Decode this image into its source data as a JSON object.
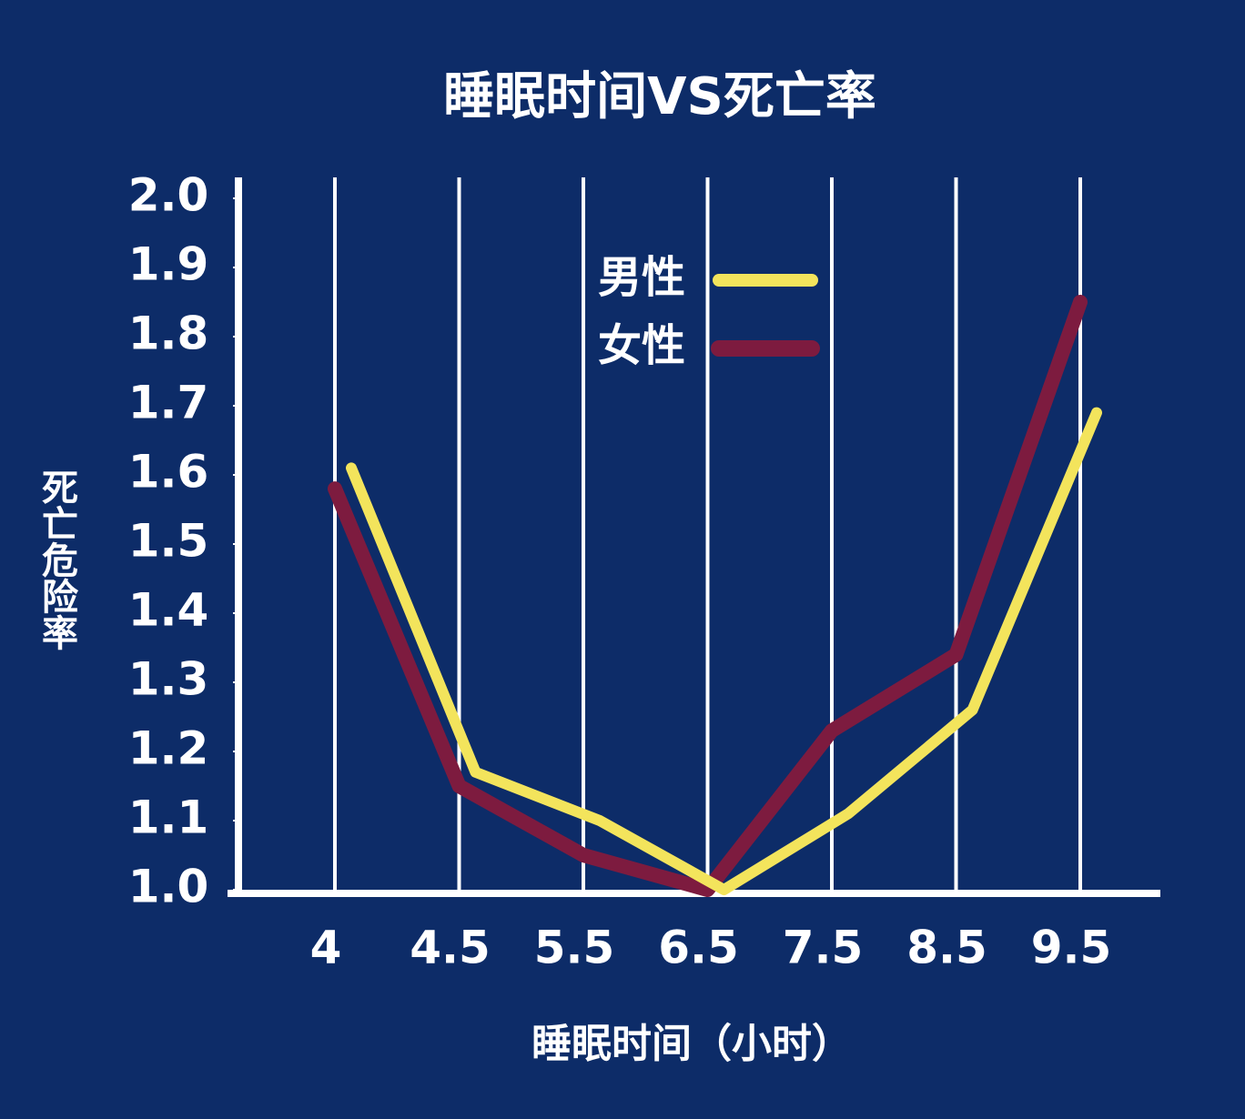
{
  "chart_data": {
    "type": "line",
    "title": "睡眠时间VS死亡率",
    "x_label": "睡眠时间（小时）",
    "y_label": "死亡危险率",
    "categories": [
      "4",
      "4.5",
      "5.5",
      "6.5",
      "7.5",
      "8.5",
      "9.5"
    ],
    "series": [
      {
        "name": "男性",
        "color": "#f3e45c",
        "values": [
          1.61,
          1.17,
          1.1,
          1.0,
          1.11,
          1.26,
          1.69
        ]
      },
      {
        "name": "女性",
        "color": "#7d1b3f",
        "values": [
          1.58,
          1.15,
          1.05,
          1.0,
          1.23,
          1.34,
          1.85
        ]
      }
    ],
    "ylim": [
      1,
      2
    ],
    "yticks": [
      {
        "value": 1,
        "label": "1.0"
      },
      1.1,
      1.2,
      1.3,
      1.4,
      1.5,
      1.6,
      1.7,
      1.8,
      1.9,
      {
        "value": 2,
        "label": "2.0"
      }
    ],
    "grid": "x",
    "legend": "top"
  }
}
